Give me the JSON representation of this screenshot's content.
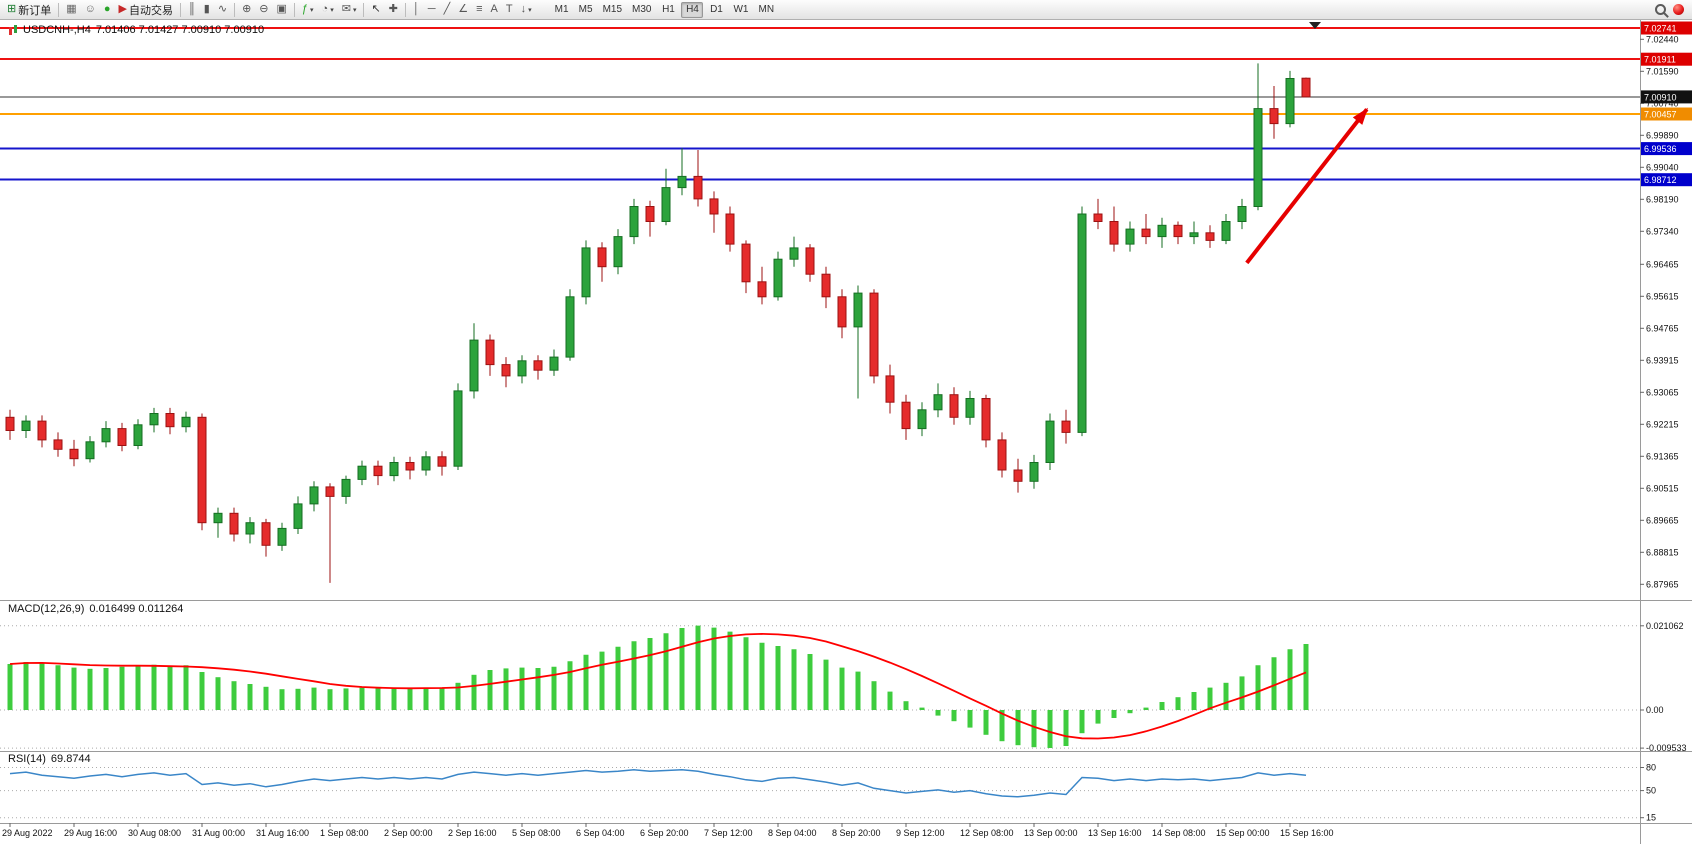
{
  "toolbar": {
    "buttons": [
      {
        "name": "new-order",
        "glyph": "⊞",
        "color": "#1c7c30",
        "label": "新订单"
      },
      {
        "sep": true
      },
      {
        "name": "charts-window",
        "glyph": "▦",
        "color": "#666666"
      },
      {
        "name": "profile",
        "glyph": "☺",
        "color": "#666666"
      },
      {
        "name": "refresh",
        "glyph": "●",
        "color": "#2aa52a"
      },
      {
        "name": "autotrade",
        "glyph": "▶",
        "color": "#c62828",
        "label": "自动交易"
      },
      {
        "sep": true
      },
      {
        "name": "bar-chart",
        "glyph": "║",
        "color": "#555555"
      },
      {
        "name": "candlestick-chart",
        "gly_x": "",
        "glyph": "▮",
        "color": "#555555"
      },
      {
        "name": "line-chart",
        "glyph": "∿",
        "color": "#555555"
      },
      {
        "sep": true
      },
      {
        "name": "zoom-in",
        "glyph": "⊕",
        "color": "#555555"
      },
      {
        "name": "zoom-out",
        "glyph": "⊖",
        "color": "#555555"
      },
      {
        "name": "tile-windows",
        "glyph": "▣",
        "color": "#555555"
      },
      {
        "sep": true
      },
      {
        "name": "indicators",
        "glyph": "ƒ",
        "color": "#2aa52a",
        "caret": true
      },
      {
        "name": "periods",
        "glyph": "◔",
        "color": "#555555",
        "caret": true
      },
      {
        "name": "templates",
        "glyph": "✉",
        "color": "#555555",
        "caret": true
      },
      {
        "sep": true
      },
      {
        "name": "cursor",
        "glyph": "↖",
        "color": "#333333"
      },
      {
        "name": "crosshair",
        "glyph": "✚",
        "color": "#555555"
      },
      {
        "sep": true
      },
      {
        "name": "vertical-line",
        "glyph": "│",
        "color": "#555555"
      },
      {
        "name": "horizontal-line",
        "glyph": "─",
        "color": "#555555"
      },
      {
        "name": "trendline",
        "glyph": "╱",
        "color": "#555555"
      },
      {
        "name": "channel",
        "glyph": "∠",
        "color": "#555555"
      },
      {
        "name": "fibonacci",
        "glyph": "≡",
        "color": "#555555"
      },
      {
        "name": "text",
        "glyph": "A",
        "color": "#555555"
      },
      {
        "name": "label",
        "glyph": "T",
        "color": "#555555"
      },
      {
        "name": "arrows",
        "glyph": "↓",
        "color": "#555555",
        "caret": true
      }
    ],
    "timeframes": [
      "M1",
      "M5",
      "M15",
      "M30",
      "H1",
      "H4",
      "D1",
      "W1",
      "MN"
    ],
    "active_timeframe": "H4"
  },
  "chart": {
    "symbol_title": "USDCNH-,H4",
    "ohlc_text": "7.01406 7.01427 7.00910 7.00910"
  },
  "colors": {
    "up": "#2ca33c",
    "up_stroke": "#156e22",
    "down": "#e52b2b",
    "down_stroke": "#9c1212",
    "macd_hist": "#3ecc3e",
    "macd_signal": "#ff0000",
    "rsi_line": "#3a86c8",
    "resistance": "#ee1111",
    "support_blue": "#1515cc",
    "support_orange": "#ffa000",
    "current_price": "#333333"
  },
  "chart_data": {
    "type": "candlestick",
    "symbol": "USDCNH",
    "timeframe": "H4",
    "candles": [
      [
        6.924,
        6.926,
        6.918,
        6.9205
      ],
      [
        6.9205,
        6.9245,
        6.9185,
        6.923
      ],
      [
        6.923,
        6.9245,
        6.916,
        6.918
      ],
      [
        6.918,
        6.92,
        6.9135,
        6.9155
      ],
      [
        6.9155,
        6.918,
        6.911,
        6.913
      ],
      [
        6.913,
        6.919,
        6.912,
        6.9175
      ],
      [
        6.9175,
        6.923,
        6.916,
        6.921
      ],
      [
        6.921,
        6.9225,
        6.915,
        6.9165
      ],
      [
        6.9165,
        6.9235,
        6.9155,
        6.922
      ],
      [
        6.922,
        6.9265,
        6.92,
        6.925
      ],
      [
        6.925,
        6.9265,
        6.9195,
        6.9215
      ],
      [
        6.9215,
        6.9255,
        6.92,
        6.924
      ],
      [
        6.924,
        6.925,
        6.894,
        6.896
      ],
      [
        6.896,
        6.9,
        6.892,
        6.8985
      ],
      [
        6.8985,
        6.9,
        6.891,
        6.893
      ],
      [
        6.893,
        6.8975,
        6.8905,
        6.896
      ],
      [
        6.896,
        6.897,
        6.887,
        6.89
      ],
      [
        6.89,
        6.896,
        6.8885,
        6.8945
      ],
      [
        6.8945,
        6.903,
        6.893,
        6.901
      ],
      [
        6.901,
        6.907,
        6.899,
        6.9055
      ],
      [
        6.9055,
        6.9065,
        6.88,
        6.903
      ],
      [
        6.903,
        6.9085,
        6.901,
        6.9075
      ],
      [
        6.9075,
        6.9125,
        6.906,
        6.911
      ],
      [
        6.911,
        6.9125,
        6.906,
        6.9085
      ],
      [
        6.9085,
        6.9135,
        6.907,
        6.912
      ],
      [
        6.912,
        6.9135,
        6.9075,
        6.91
      ],
      [
        6.91,
        6.915,
        6.9085,
        6.9135
      ],
      [
        6.9135,
        6.915,
        6.9085,
        6.911
      ],
      [
        6.911,
        6.933,
        6.91,
        6.931
      ],
      [
        6.931,
        6.949,
        6.929,
        6.9445
      ],
      [
        6.9445,
        6.946,
        6.935,
        6.938
      ],
      [
        6.938,
        6.94,
        6.932,
        6.935
      ],
      [
        6.935,
        6.9405,
        6.933,
        6.939
      ],
      [
        6.939,
        6.9405,
        6.934,
        6.9365
      ],
      [
        6.9365,
        6.942,
        6.935,
        6.94
      ],
      [
        6.94,
        6.958,
        6.939,
        6.956
      ],
      [
        6.956,
        6.971,
        6.954,
        6.969
      ],
      [
        6.969,
        6.9705,
        6.96,
        6.964
      ],
      [
        6.964,
        6.974,
        6.962,
        6.972
      ],
      [
        6.972,
        6.982,
        6.97,
        6.98
      ],
      [
        6.98,
        6.9815,
        6.972,
        6.976
      ],
      [
        6.976,
        6.99,
        6.975,
        6.985
      ],
      [
        6.985,
        6.9955,
        6.983,
        6.988
      ],
      [
        6.988,
        6.995,
        6.98,
        6.982
      ],
      [
        6.982,
        6.984,
        6.973,
        6.978
      ],
      [
        6.978,
        6.98,
        6.968,
        6.97
      ],
      [
        6.97,
        6.971,
        6.957,
        6.96
      ],
      [
        6.96,
        6.964,
        6.954,
        6.956
      ],
      [
        6.956,
        6.968,
        6.955,
        6.966
      ],
      [
        6.966,
        6.972,
        6.964,
        6.969
      ],
      [
        6.969,
        6.97,
        6.96,
        6.962
      ],
      [
        6.962,
        6.964,
        6.953,
        6.956
      ],
      [
        6.956,
        6.958,
        6.945,
        6.948
      ],
      [
        6.948,
        6.959,
        6.929,
        6.957
      ],
      [
        6.957,
        6.958,
        6.933,
        6.935
      ],
      [
        6.935,
        6.938,
        6.925,
        6.928
      ],
      [
        6.928,
        6.93,
        6.918,
        6.921
      ],
      [
        6.921,
        6.928,
        6.919,
        6.926
      ],
      [
        6.926,
        6.933,
        6.924,
        6.93
      ],
      [
        6.93,
        6.932,
        6.922,
        6.924
      ],
      [
        6.924,
        6.931,
        6.922,
        6.929
      ],
      [
        6.929,
        6.93,
        6.916,
        6.918
      ],
      [
        6.918,
        6.92,
        6.908,
        6.91
      ],
      [
        6.91,
        6.913,
        6.904,
        6.907
      ],
      [
        6.907,
        6.914,
        6.905,
        6.912
      ],
      [
        6.912,
        6.925,
        6.91,
        6.923
      ],
      [
        6.923,
        6.926,
        6.917,
        6.92
      ],
      [
        6.92,
        6.98,
        6.919,
        6.978
      ],
      [
        6.978,
        6.982,
        6.974,
        6.976
      ],
      [
        6.976,
        6.98,
        6.968,
        6.97
      ],
      [
        6.97,
        6.976,
        6.968,
        6.974
      ],
      [
        6.974,
        6.978,
        6.97,
        6.972
      ],
      [
        6.972,
        6.977,
        6.969,
        6.975
      ],
      [
        6.975,
        6.976,
        6.97,
        6.972
      ],
      [
        6.972,
        6.976,
        6.97,
        6.973
      ],
      [
        6.973,
        6.975,
        6.969,
        6.971
      ],
      [
        6.971,
        6.978,
        6.97,
        6.976
      ],
      [
        6.976,
        6.982,
        6.974,
        6.98
      ],
      [
        6.98,
        7.018,
        6.979,
        7.006
      ],
      [
        7.006,
        7.012,
        6.998,
        7.002
      ],
      [
        7.002,
        7.016,
        7.001,
        7.014
      ],
      [
        7.01406,
        7.01427,
        7.0091,
        7.0091
      ]
    ],
    "hlines": [
      {
        "name": "resistance-1",
        "price": 7.02741,
        "label": "7.02741",
        "color": "#ee1111",
        "box": "#dd0000",
        "width": 2
      },
      {
        "name": "resistance-2",
        "price": 7.01911,
        "label": "7.01911",
        "color": "#ee1111",
        "box": "#dd0000",
        "width": 2
      },
      {
        "name": "current-price",
        "price": 7.0091,
        "label": "7.00910",
        "color": "#333333",
        "box": "#111111",
        "width": 1
      },
      {
        "name": "support-orange",
        "price": 7.00457,
        "label": "7.00457",
        "color": "#ffa000",
        "box": "#f08c00",
        "width": 2
      },
      {
        "name": "support-blue-1",
        "price": 6.99536,
        "label": "6.99536",
        "color": "#1515cc",
        "box": "#0000cc",
        "width": 2
      },
      {
        "name": "support-blue-2",
        "price": 6.98712,
        "label": "6.98712",
        "color": "#1515cc",
        "box": "#0000cc",
        "width": 2
      }
    ],
    "arrow": {
      "from_index": 77.3,
      "from_price": 6.965,
      "to_index": 84.8,
      "to_price": 7.0058,
      "color": "#e60000"
    },
    "price_scale": [
      "7.02440",
      "7.01590",
      "7.00740",
      "6.99890",
      "6.99040",
      "6.98190",
      "6.97340",
      "6.96465",
      "6.95615",
      "6.94765",
      "6.93915",
      "6.93065",
      "6.92215",
      "6.91365",
      "6.90515",
      "6.89665",
      "6.88815",
      "6.87965"
    ],
    "time_labels": [
      "29 Aug 2022",
      "29 Aug 16:00",
      "30 Aug 08:00",
      "31 Aug 00:00",
      "31 Aug 16:00",
      "1 Sep 08:00",
      "2 Sep 00:00",
      "2 Sep 16:00",
      "5 Sep 08:00",
      "6 Sep 04:00",
      "6 Sep 20:00",
      "7 Sep 12:00",
      "8 Sep 04:00",
      "8 Sep 20:00",
      "9 Sep 12:00",
      "12 Sep 08:00",
      "13 Sep 00:00",
      "13 Sep 16:00",
      "14 Sep 08:00",
      "15 Sep 00:00",
      "15 Sep 16:00"
    ],
    "macd": {
      "name": "MACD(12,26,9)",
      "values_text": "0.016499 0.011264",
      "scale_labels": [
        "0.021062",
        "0.00",
        "-0.009533"
      ],
      "scale_values": [
        0.021062,
        0,
        -0.009533
      ],
      "histogram": [
        0.0115,
        0.012,
        0.0118,
        0.0112,
        0.0106,
        0.0103,
        0.0105,
        0.0108,
        0.011,
        0.0113,
        0.011,
        0.0112,
        0.0095,
        0.0082,
        0.0072,
        0.0065,
        0.0058,
        0.0052,
        0.0053,
        0.0056,
        0.0052,
        0.0054,
        0.0056,
        0.0055,
        0.0056,
        0.0054,
        0.0056,
        0.0055,
        0.0068,
        0.0088,
        0.01,
        0.0104,
        0.0106,
        0.0105,
        0.0108,
        0.0122,
        0.0138,
        0.0146,
        0.0158,
        0.0172,
        0.018,
        0.0192,
        0.0205,
        0.0211,
        0.0206,
        0.0196,
        0.0182,
        0.0168,
        0.016,
        0.0152,
        0.014,
        0.0126,
        0.0106,
        0.0096,
        0.0072,
        0.0046,
        0.0022,
        0.0006,
        -0.0014,
        -0.0028,
        -0.0044,
        -0.0062,
        -0.0078,
        -0.0088,
        -0.0093,
        -0.0095,
        -0.009,
        -0.0058,
        -0.0034,
        -0.002,
        -0.0008,
        0.0006,
        0.002,
        0.0032,
        0.0045,
        0.0056,
        0.0068,
        0.0084,
        0.0112,
        0.0132,
        0.0152,
        0.0165
      ]
    },
    "rsi": {
      "name": "RSI(14)",
      "value_text": "69.8744",
      "levels": [
        80,
        50,
        15
      ],
      "level_labels": [
        "80",
        "50",
        "15"
      ],
      "values": [
        72,
        74,
        70,
        68,
        66,
        69,
        71,
        68,
        71,
        73,
        70,
        72,
        58,
        60,
        57,
        59,
        55,
        58,
        62,
        65,
        63,
        65,
        67,
        65,
        67,
        65,
        67,
        65,
        71,
        74,
        72,
        70,
        72,
        70,
        72,
        74,
        76,
        74,
        75,
        77,
        75,
        76,
        77,
        75,
        71,
        68,
        64,
        62,
        66,
        67,
        64,
        61,
        57,
        60,
        53,
        50,
        47,
        49,
        51,
        48,
        50,
        46,
        43,
        42,
        44,
        47,
        45,
        67,
        66,
        63,
        65,
        63,
        65,
        64,
        65,
        63,
        65,
        67,
        73,
        70,
        72,
        69.87
      ]
    }
  }
}
